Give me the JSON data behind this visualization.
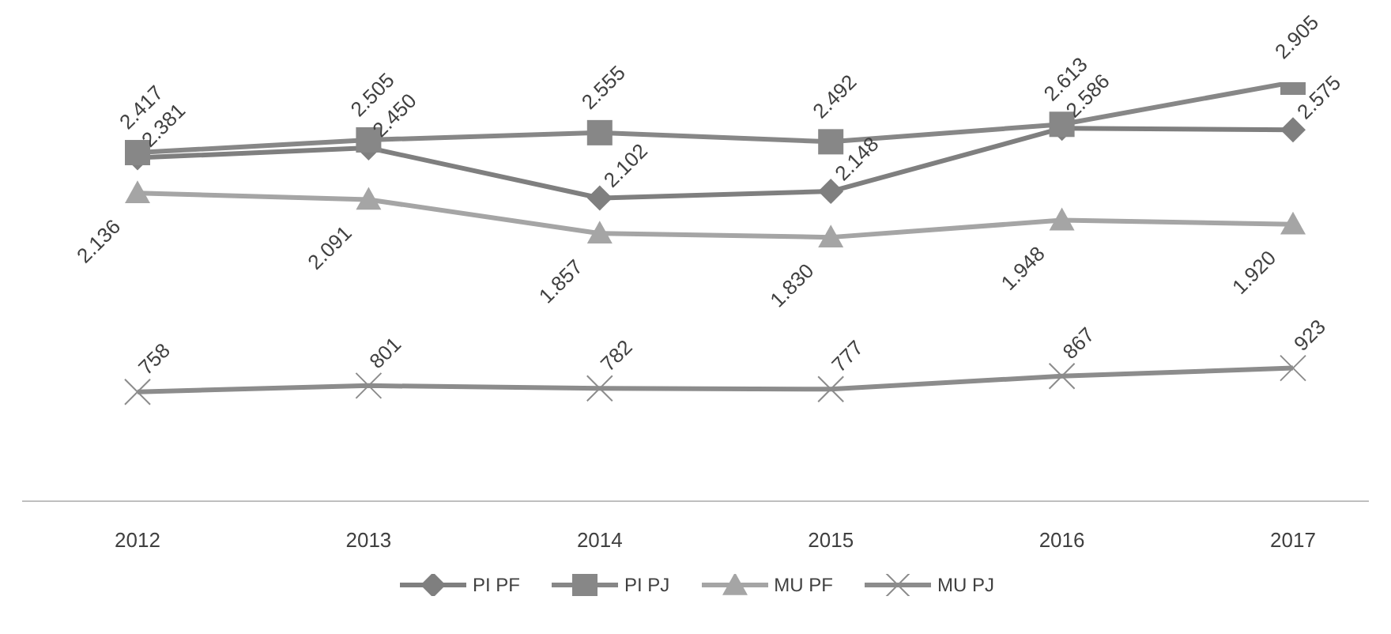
{
  "chart_data": {
    "type": "line",
    "categories": [
      "2012",
      "2013",
      "2014",
      "2015",
      "2016",
      "2017"
    ],
    "tick_labels": "x",
    "legend": "bottom",
    "grid": false,
    "series": [
      {
        "name": "PI PF",
        "color": "#7f7f7f",
        "marker": "diamond",
        "values": [
          2381,
          2450,
          2102,
          2148,
          2586,
          2575
        ],
        "value_labels": [
          "2.381",
          "2.450",
          "2.102",
          "2.148",
          "2.586",
          "2.575"
        ]
      },
      {
        "name": "PI PJ",
        "color": "#878787",
        "marker": "square",
        "values": [
          2417,
          2505,
          2555,
          2492,
          2613,
          2905
        ],
        "value_labels": [
          "2.417",
          "2.505",
          "2.555",
          "2.492",
          "2.613",
          "2.905"
        ]
      },
      {
        "name": "MU PF",
        "color": "#a5a5a5",
        "marker": "triangle",
        "values": [
          2136,
          2091,
          1857,
          1830,
          1948,
          1920
        ],
        "value_labels": [
          "2.136",
          "2.091",
          "1.857",
          "1.830",
          "1.948",
          "1.920"
        ]
      },
      {
        "name": "MU PJ",
        "color": "#8c8c8c",
        "marker": "cross",
        "values": [
          758,
          801,
          782,
          777,
          867,
          923
        ],
        "value_labels": [
          "758",
          "801",
          "782",
          "777",
          "867",
          "923"
        ]
      }
    ]
  }
}
